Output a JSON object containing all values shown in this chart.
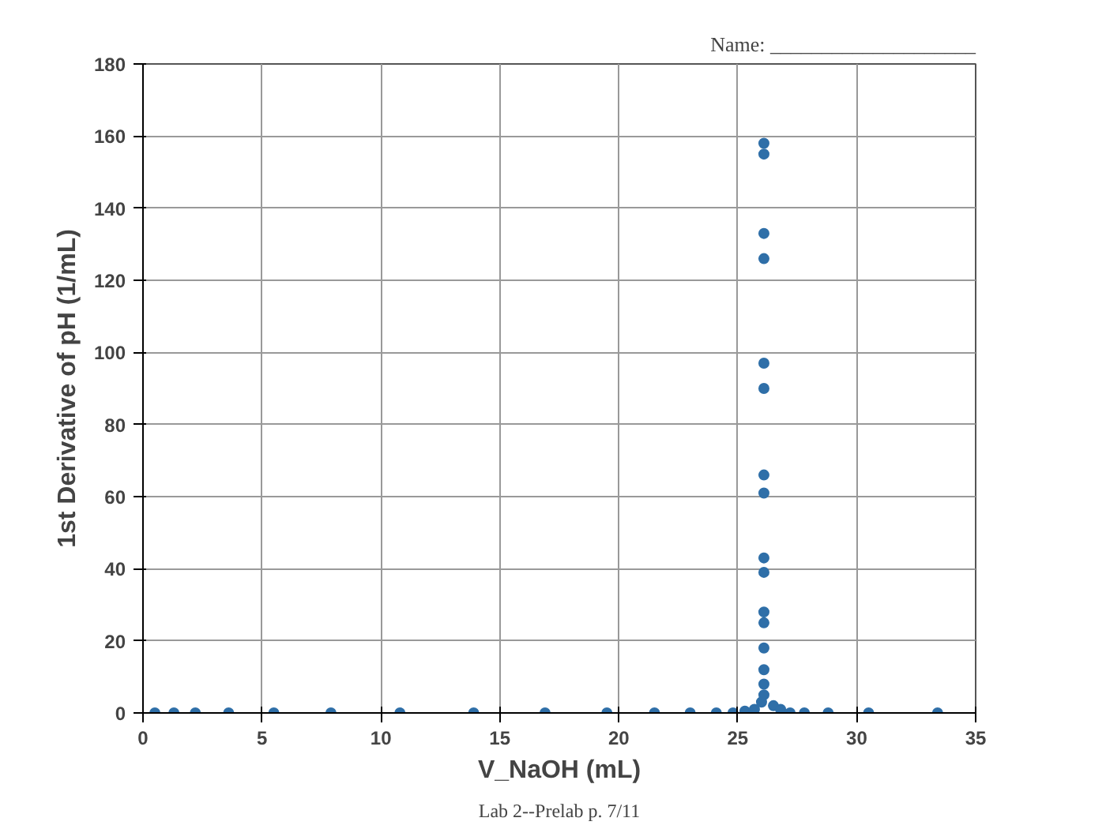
{
  "chart_data": {
    "type": "scatter",
    "xlabel": "V_NaOH (mL)",
    "ylabel": "1st Derivative of pH (1/mL)",
    "annotations": [
      "Name: ____________________",
      "Lab 2--Prelab p. 7/11"
    ],
    "series": [
      {
        "color": "#2f6fa8",
        "x": [
          0.5,
          1.3,
          2.2,
          3.6,
          5.5,
          7.9,
          10.8,
          13.9,
          16.9,
          19.5,
          21.5,
          23.0,
          24.1,
          24.8,
          25.3,
          25.7,
          26.0,
          26.1,
          26.1,
          26.1,
          26.1,
          26.1,
          26.1,
          26.1,
          26.1,
          26.1,
          26.1,
          26.1,
          26.1,
          26.1,
          26.1,
          26.1,
          26.1,
          26.5,
          26.8,
          27.2,
          27.8,
          28.8,
          30.5,
          33.4
        ],
        "values": [
          0,
          0,
          0,
          0,
          0,
          0,
          0,
          0,
          0,
          0,
          0,
          0,
          0,
          0,
          0.5,
          1,
          3,
          5,
          8,
          12,
          18,
          25,
          28,
          39,
          43,
          61,
          66,
          90,
          97,
          126,
          133,
          155,
          158,
          2,
          1,
          0,
          0,
          0,
          0,
          0
        ]
      }
    ],
    "xlim": [
      0,
      35
    ],
    "ylim": [
      0,
      180
    ],
    "xticks": [
      0,
      5,
      10,
      15,
      20,
      25,
      30,
      35
    ],
    "yticks": [
      0,
      20,
      40,
      60,
      80,
      100,
      120,
      140,
      160,
      180
    ],
    "grid": true,
    "marker": "circle"
  }
}
